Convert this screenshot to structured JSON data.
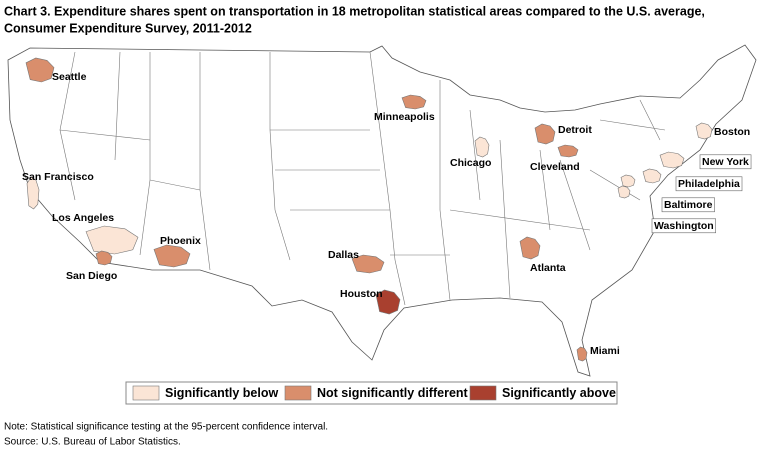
{
  "title": [
    "Chart 3. Expenditure shares spent on transportation in 18 metropolitan statistical areas compared to the U.S. average,",
    "Consumer Expenditure Survey, 2011-2012"
  ],
  "legend": [
    {
      "label": "Significantly below",
      "color": "#fbe5d6"
    },
    {
      "label": "Not significantly different",
      "color": "#d98e6c"
    },
    {
      "label": "Significantly above",
      "color": "#a9402f"
    }
  ],
  "metros": [
    {
      "name": "Seattle",
      "class": 1
    },
    {
      "name": "San Francisco",
      "class": 0
    },
    {
      "name": "Los Angeles",
      "class": 0
    },
    {
      "name": "San Diego",
      "class": 1
    },
    {
      "name": "Phoenix",
      "class": 1
    },
    {
      "name": "Dallas",
      "class": 1
    },
    {
      "name": "Houston",
      "class": 2
    },
    {
      "name": "Minneapolis",
      "class": 1
    },
    {
      "name": "Chicago",
      "class": 0
    },
    {
      "name": "Detroit",
      "class": 1
    },
    {
      "name": "Cleveland",
      "class": 1
    },
    {
      "name": "Atlanta",
      "class": 1
    },
    {
      "name": "Miami",
      "class": 1
    },
    {
      "name": "Boston",
      "class": 0
    },
    {
      "name": "New York",
      "class": 0
    },
    {
      "name": "Philadelphia",
      "class": 0
    },
    {
      "name": "Baltimore",
      "class": 0
    },
    {
      "name": "Washington",
      "class": 0
    }
  ],
  "note": "Note: Statistical significance testing at the 95-percent confidence interval.",
  "source": "Source: U.S. Bureau of Labor Statistics."
}
